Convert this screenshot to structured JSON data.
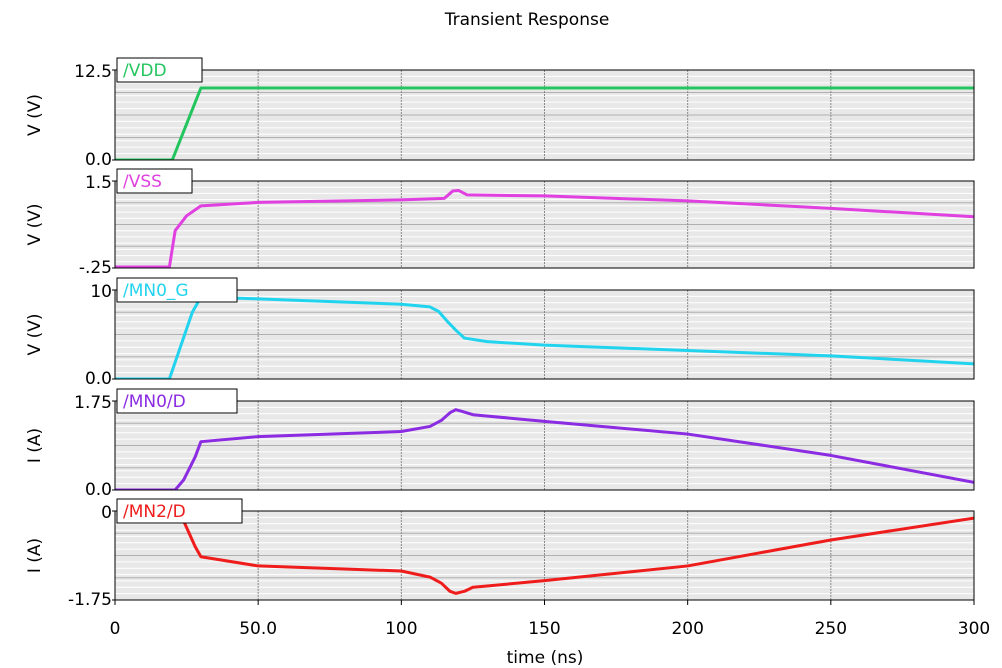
{
  "chart_data": {
    "type": "line",
    "title": "Transient Response",
    "xlabel": "time (ns)",
    "xlim": [
      0,
      300
    ],
    "x_ticks": [
      0,
      50,
      100,
      150,
      200,
      250,
      300
    ],
    "x_tick_labels": [
      "0",
      "50.0",
      "100",
      "150",
      "200",
      "250",
      "300"
    ],
    "grid": true,
    "panels": [
      {
        "name": "/VDD",
        "ylabel": "V (V)",
        "color": "#22c55e",
        "ylim": [
          0.0,
          12.5
        ],
        "ytick_labels": [
          "12.5",
          "0.0"
        ],
        "points": [
          [
            0,
            0
          ],
          [
            20,
            0
          ],
          [
            30,
            10
          ],
          [
            300,
            10
          ]
        ]
      },
      {
        "name": "/VSS",
        "ylabel": "V (V)",
        "color": "#e040e0",
        "ylim": [
          -0.25,
          1.5
        ],
        "ytick_labels": [
          "1.5",
          "-.25"
        ],
        "points": [
          [
            0,
            -0.23
          ],
          [
            19,
            -0.23
          ],
          [
            21,
            0.5
          ],
          [
            25,
            0.8
          ],
          [
            30,
            1.0
          ],
          [
            50,
            1.07
          ],
          [
            100,
            1.12
          ],
          [
            115,
            1.15
          ],
          [
            118,
            1.3
          ],
          [
            120,
            1.31
          ],
          [
            123,
            1.22
          ],
          [
            150,
            1.2
          ],
          [
            200,
            1.1
          ],
          [
            250,
            0.95
          ],
          [
            300,
            0.78
          ]
        ]
      },
      {
        "name": "/MN0_G",
        "ylabel": "V (V)",
        "color": "#22d3ee",
        "ylim": [
          0.0,
          10
        ],
        "ytick_labels": [
          "10",
          "0.0"
        ],
        "points": [
          [
            0,
            0
          ],
          [
            19,
            0
          ],
          [
            27,
            7.5
          ],
          [
            30,
            9.2
          ],
          [
            40,
            9.1
          ],
          [
            50,
            9.0
          ],
          [
            100,
            8.4
          ],
          [
            110,
            8.1
          ],
          [
            113,
            7.6
          ],
          [
            116,
            6.5
          ],
          [
            119,
            5.5
          ],
          [
            122,
            4.6
          ],
          [
            130,
            4.2
          ],
          [
            150,
            3.8
          ],
          [
            200,
            3.2
          ],
          [
            250,
            2.6
          ],
          [
            300,
            1.7
          ]
        ]
      },
      {
        "name": "/MN0/D",
        "ylabel": "I (A)",
        "color": "#8b2be2",
        "ylim": [
          0.0,
          1.75
        ],
        "ytick_labels": [
          "1.75",
          "0.0"
        ],
        "points": [
          [
            0,
            0
          ],
          [
            21,
            0
          ],
          [
            24,
            0.2
          ],
          [
            28,
            0.65
          ],
          [
            30,
            0.95
          ],
          [
            50,
            1.05
          ],
          [
            100,
            1.15
          ],
          [
            110,
            1.25
          ],
          [
            114,
            1.37
          ],
          [
            117,
            1.52
          ],
          [
            119,
            1.58
          ],
          [
            121,
            1.55
          ],
          [
            125,
            1.48
          ],
          [
            150,
            1.35
          ],
          [
            200,
            1.1
          ],
          [
            250,
            0.68
          ],
          [
            300,
            0.15
          ]
        ]
      },
      {
        "name": "/MN2/D",
        "ylabel": "I (A)",
        "color": "#ef1c1c",
        "ylim": [
          -1.75,
          0
        ],
        "ytick_labels": [
          "0",
          "-1.75"
        ],
        "points": [
          [
            22,
            0.05
          ],
          [
            24,
            -0.2
          ],
          [
            28,
            -0.7
          ],
          [
            30,
            -0.9
          ],
          [
            50,
            -1.08
          ],
          [
            100,
            -1.18
          ],
          [
            110,
            -1.3
          ],
          [
            114,
            -1.42
          ],
          [
            117,
            -1.58
          ],
          [
            119,
            -1.62
          ],
          [
            122,
            -1.58
          ],
          [
            125,
            -1.5
          ],
          [
            150,
            -1.37
          ],
          [
            200,
            -1.08
          ],
          [
            250,
            -0.57
          ],
          [
            300,
            -0.14
          ]
        ]
      }
    ]
  }
}
